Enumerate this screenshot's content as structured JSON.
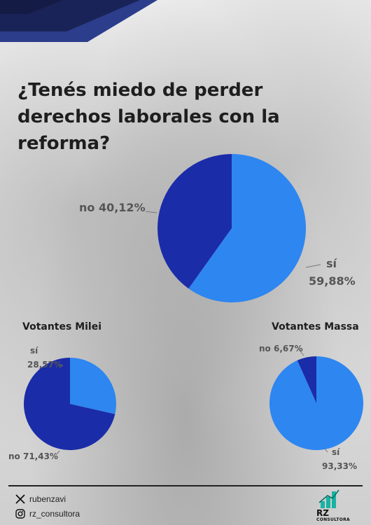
{
  "title": "¿Tenés miedo de perder derechos laborales con la reforma?",
  "colors": {
    "si": "#2e86f0",
    "no": "#1b2ca8",
    "banner_dark": "#1a2357",
    "banner_mid": "#2c3d8c"
  },
  "chart_data": [
    {
      "type": "pie",
      "title": "",
      "slices": [
        {
          "label": "sí",
          "value": 59.88,
          "display": "59,88%"
        },
        {
          "label": "no",
          "value": 40.12,
          "display": "40,12%"
        }
      ]
    },
    {
      "type": "pie",
      "title": "Votantes Milei",
      "slices": [
        {
          "label": "sí",
          "value": 28.57,
          "display": "28,57%"
        },
        {
          "label": "no",
          "value": 71.43,
          "display": "71,43%"
        }
      ]
    },
    {
      "type": "pie",
      "title": "Votantes Massa",
      "slices": [
        {
          "label": "sí",
          "value": 93.33,
          "display": "93,33%"
        },
        {
          "label": "no",
          "value": 6.67,
          "display": "6,67%"
        }
      ]
    }
  ],
  "footer": {
    "twitter_handle": "rubenzavi",
    "instagram_handle": "rz_consultora",
    "logo_text": "RZ",
    "logo_subtitle": "CONSULTORA"
  }
}
